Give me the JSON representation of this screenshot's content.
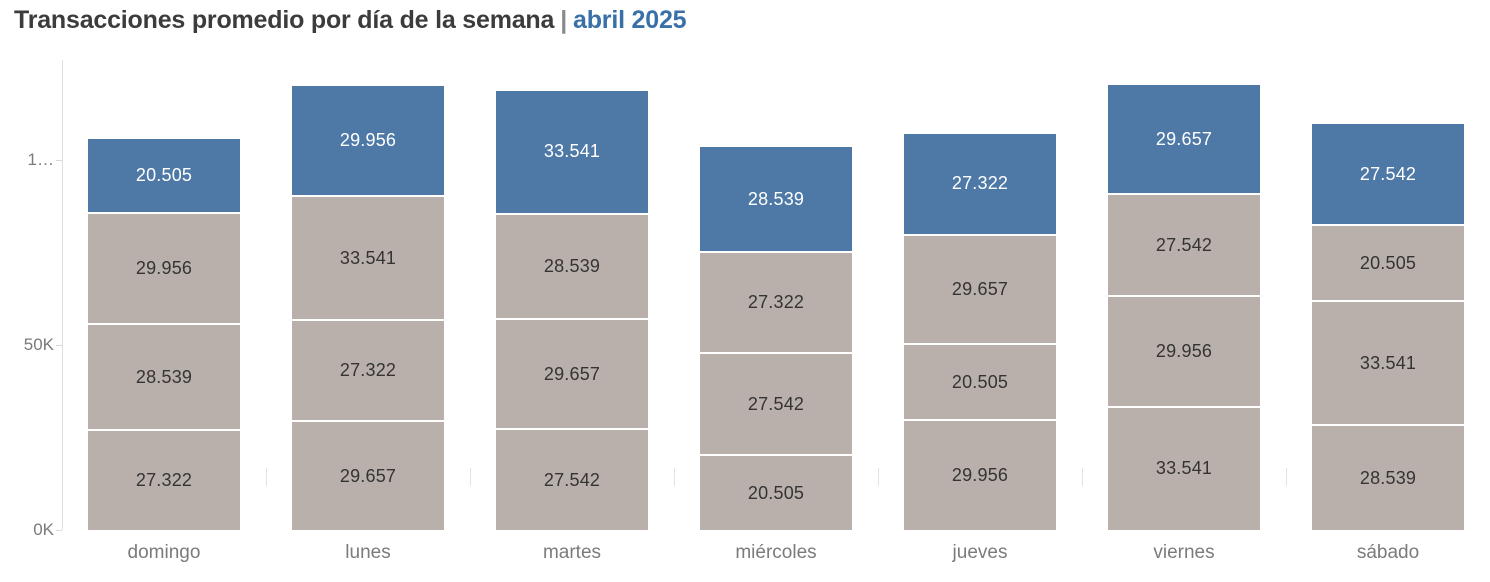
{
  "title": {
    "main": "Transacciones promedio por día de la semana",
    "separator": "|",
    "accent": "abril 2025"
  },
  "colors": {
    "bar_blue": "#4e79a7",
    "bar_gray": "#bab0ab",
    "segment_label_dark": "#343434",
    "segment_label_light": "#ffffff",
    "title_text": "#3c3c3c",
    "title_accent": "#3a70a8",
    "axis_text": "#7a7a7a"
  },
  "chart_data": {
    "type": "bar",
    "stacked": true,
    "orientation": "vertical",
    "grid": false,
    "legend": "none",
    "title": "Transacciones promedio por día de la semana | abril 2025",
    "categories": [
      "domingo",
      "lunes",
      "martes",
      "miércoles",
      "jueves",
      "viernes",
      "sábado"
    ],
    "y_axis": {
      "range": [
        0,
        127000
      ],
      "ticks": [
        {
          "label": "0K",
          "value": 0
        },
        {
          "label": "50K",
          "value": 50000
        },
        {
          "label": "1…",
          "value": 100000
        }
      ]
    },
    "bars": [
      {
        "category": "domingo",
        "segments_bottom_to_top": [
          {
            "label": "27.322",
            "value": 27322,
            "color": "gray"
          },
          {
            "label": "28.539",
            "value": 28539,
            "color": "gray"
          },
          {
            "label": "29.956",
            "value": 29956,
            "color": "gray"
          },
          {
            "label": "20.505",
            "value": 20505,
            "color": "blue"
          }
        ]
      },
      {
        "category": "lunes",
        "segments_bottom_to_top": [
          {
            "label": "29.657",
            "value": 29657,
            "color": "gray"
          },
          {
            "label": "27.322",
            "value": 27322,
            "color": "gray"
          },
          {
            "label": "33.541",
            "value": 33541,
            "color": "gray"
          },
          {
            "label": "29.956",
            "value": 29956,
            "color": "blue"
          }
        ]
      },
      {
        "category": "martes",
        "segments_bottom_to_top": [
          {
            "label": "27.542",
            "value": 27542,
            "color": "gray"
          },
          {
            "label": "29.657",
            "value": 29657,
            "color": "gray"
          },
          {
            "label": "28.539",
            "value": 28539,
            "color": "gray"
          },
          {
            "label": "33.541",
            "value": 33541,
            "color": "blue"
          }
        ]
      },
      {
        "category": "miércoles",
        "segments_bottom_to_top": [
          {
            "label": "20.505",
            "value": 20505,
            "color": "gray"
          },
          {
            "label": "27.542",
            "value": 27542,
            "color": "gray"
          },
          {
            "label": "27.322",
            "value": 27322,
            "color": "gray"
          },
          {
            "label": "28.539",
            "value": 28539,
            "color": "blue"
          }
        ]
      },
      {
        "category": "jueves",
        "segments_bottom_to_top": [
          {
            "label": "29.956",
            "value": 29956,
            "color": "gray"
          },
          {
            "label": "20.505",
            "value": 20505,
            "color": "gray"
          },
          {
            "label": "29.657",
            "value": 29657,
            "color": "gray"
          },
          {
            "label": "27.322",
            "value": 27322,
            "color": "blue"
          }
        ]
      },
      {
        "category": "viernes",
        "segments_bottom_to_top": [
          {
            "label": "33.541",
            "value": 33541,
            "color": "gray"
          },
          {
            "label": "29.956",
            "value": 29956,
            "color": "gray"
          },
          {
            "label": "27.542",
            "value": 27542,
            "color": "gray"
          },
          {
            "label": "29.657",
            "value": 29657,
            "color": "blue"
          }
        ]
      },
      {
        "category": "sábado",
        "segments_bottom_to_top": [
          {
            "label": "28.539",
            "value": 28539,
            "color": "gray"
          },
          {
            "label": "33.541",
            "value": 33541,
            "color": "gray"
          },
          {
            "label": "20.505",
            "value": 20505,
            "color": "gray"
          },
          {
            "label": "27.542",
            "value": 27542,
            "color": "blue"
          }
        ]
      }
    ]
  }
}
